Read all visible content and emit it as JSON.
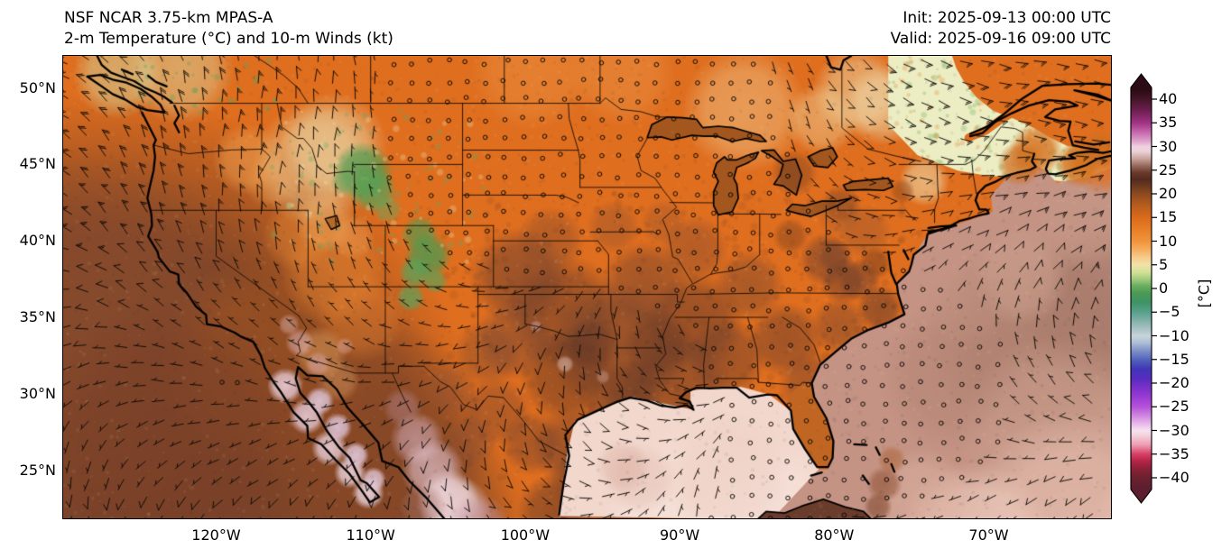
{
  "header": {
    "title_line1": "NSF NCAR 3.75-km MPAS-A",
    "title_line2": "2-m Temperature (°C) and 10-m Winds (kt)",
    "init_label": "Init: 2025-09-13 00:00 UTC",
    "valid_label": "Valid: 2025-09-16 09:00 UTC"
  },
  "map": {
    "x_axis_ticks": [
      {
        "label": "120°W",
        "lon": -120
      },
      {
        "label": "110°W",
        "lon": -110
      },
      {
        "label": "100°W",
        "lon": -100
      },
      {
        "label": "90°W",
        "lon": -90
      },
      {
        "label": "80°W",
        "lon": -80
      },
      {
        "label": "70°W",
        "lon": -70
      }
    ],
    "y_axis_ticks": [
      {
        "label": "50°N",
        "lat": 50
      },
      {
        "label": "45°N",
        "lat": 45
      },
      {
        "label": "40°N",
        "lat": 40
      },
      {
        "label": "35°N",
        "lat": 35
      },
      {
        "label": "30°N",
        "lat": 30
      },
      {
        "label": "25°N",
        "lat": 25
      }
    ]
  },
  "colorbar": {
    "unit_label": "[°C]",
    "ticks": [
      {
        "label": "40",
        "value": 40
      },
      {
        "label": "35",
        "value": 35
      },
      {
        "label": "30",
        "value": 30
      },
      {
        "label": "25",
        "value": 25
      },
      {
        "label": "20",
        "value": 20
      },
      {
        "label": "15",
        "value": 15
      },
      {
        "label": "10",
        "value": 10
      },
      {
        "label": "5",
        "value": 5
      },
      {
        "label": "0",
        "value": 0
      },
      {
        "label": "−5",
        "value": -5
      },
      {
        "label": "−10",
        "value": -10
      },
      {
        "label": "−15",
        "value": -15
      },
      {
        "label": "−20",
        "value": -20
      },
      {
        "label": "−25",
        "value": -25
      },
      {
        "label": "−30",
        "value": -30
      },
      {
        "label": "−35",
        "value": -35
      },
      {
        "label": "−40",
        "value": -40
      }
    ],
    "gradient_stops": [
      {
        "value": 42,
        "color": "#2b0c15"
      },
      {
        "value": 40,
        "color": "#451528"
      },
      {
        "value": 37.5,
        "color": "#6f1f52"
      },
      {
        "value": 35,
        "color": "#a03384"
      },
      {
        "value": 33,
        "color": "#c767ad"
      },
      {
        "value": 31,
        "color": "#e2a7ce"
      },
      {
        "value": 30,
        "color": "#efd2e2"
      },
      {
        "value": 29,
        "color": "#ecd3d6"
      },
      {
        "value": 27.5,
        "color": "#cba6a0"
      },
      {
        "value": 26,
        "color": "#9a6c5e"
      },
      {
        "value": 24.5,
        "color": "#6a3a2c"
      },
      {
        "value": 23,
        "color": "#552a1f"
      },
      {
        "value": 21.5,
        "color": "#6e3b1e"
      },
      {
        "value": 20,
        "color": "#8c4a1e"
      },
      {
        "value": 17.5,
        "color": "#b75d1d"
      },
      {
        "value": 15,
        "color": "#da6a1b"
      },
      {
        "value": 12.5,
        "color": "#e87e27"
      },
      {
        "value": 10,
        "color": "#f0943c"
      },
      {
        "value": 8,
        "color": "#f5b163"
      },
      {
        "value": 6.5,
        "color": "#f6cc8d"
      },
      {
        "value": 5,
        "color": "#f1e2a8"
      },
      {
        "value": 3.5,
        "color": "#d4e19a"
      },
      {
        "value": 2,
        "color": "#a2cb7d"
      },
      {
        "value": 0.5,
        "color": "#69ad5f"
      },
      {
        "value": -1,
        "color": "#4b9955"
      },
      {
        "value": -3,
        "color": "#3f9366"
      },
      {
        "value": -5,
        "color": "#58a08c"
      },
      {
        "value": -7,
        "color": "#86b2ab"
      },
      {
        "value": -9,
        "color": "#b1c8cb"
      },
      {
        "value": -10,
        "color": "#c7d5d9"
      },
      {
        "value": -11.5,
        "color": "#adbdd5"
      },
      {
        "value": -13,
        "color": "#8294ca"
      },
      {
        "value": -15,
        "color": "#5364bc"
      },
      {
        "value": -17,
        "color": "#4037b7"
      },
      {
        "value": -19,
        "color": "#592bbf"
      },
      {
        "value": -21,
        "color": "#7b31ca"
      },
      {
        "value": -23,
        "color": "#9b3bd3"
      },
      {
        "value": -25,
        "color": "#b552d9"
      },
      {
        "value": -27,
        "color": "#d389e1"
      },
      {
        "value": -29,
        "color": "#ecc5eb"
      },
      {
        "value": -30,
        "color": "#f5e2ef"
      },
      {
        "value": -31,
        "color": "#f5d2dd"
      },
      {
        "value": -33,
        "color": "#ed9eb3"
      },
      {
        "value": -35,
        "color": "#d83f66"
      },
      {
        "value": -36.5,
        "color": "#b42446"
      },
      {
        "value": -38,
        "color": "#8d2137"
      },
      {
        "value": -40,
        "color": "#6c202f"
      },
      {
        "value": -42,
        "color": "#5d1f2f"
      }
    ]
  },
  "palette": {
    "base_land_orange": "#df6e1f",
    "hot_brown": "#6f4130",
    "gulf_pink": "#f2d7cd",
    "atlantic_mauve": "#c49384",
    "cool_green": "#4f9b50",
    "pale_cream_green": "#ecedc3",
    "baja_pink": "#e3c3d3",
    "pacific_dark_brown": "#6a3b28",
    "great_lakes_brown": "#a3571f",
    "barbs": "#0c0804",
    "coast": "#000000"
  }
}
